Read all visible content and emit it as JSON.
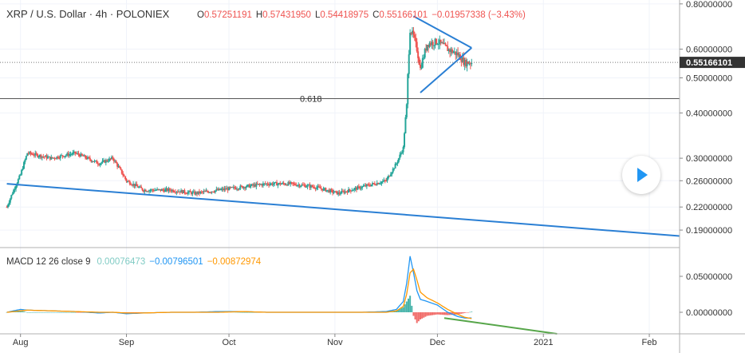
{
  "header": {
    "symbol": "XRP / U.S. Dollar",
    "interval": "4h",
    "exchange": "POLONIEX",
    "sep1": " · ",
    "sep2": " · ",
    "o_label": "O",
    "o_value": "0.57251191",
    "h_label": "H",
    "h_value": "0.57431950",
    "l_label": "L",
    "l_value": "0.54418975",
    "c_label": "C",
    "c_value": "0.55166101",
    "change": "−0.01957338 (−3.43%)"
  },
  "price_axis": {
    "ticks": [
      "0.80000000",
      "0.60000000",
      "0.50000000",
      "0.40000000",
      "0.30000000",
      "0.26000000",
      "0.22000000",
      "0.19000000"
    ],
    "tick_values": [
      0.8,
      0.6,
      0.5,
      0.4,
      0.3,
      0.26,
      0.22,
      0.19
    ],
    "current_price_label": "0.55166101",
    "current_price": 0.55166101
  },
  "fib_level": {
    "label": "0.618",
    "price": 0.438
  },
  "macd": {
    "label": "MACD 12 26 close 9",
    "histogram": "0.00076473",
    "macd_value": "−0.00796501",
    "signal_value": "−0.00872974",
    "ticks": [
      "0.05000000",
      "0.00000000"
    ],
    "tick_values": [
      0.05,
      0.0
    ]
  },
  "time_axis": {
    "labels": [
      "Aug",
      "Sep",
      "Oct",
      "Nov",
      "Dec",
      "2021",
      "Feb"
    ]
  },
  "colors": {
    "up": "#26a69a",
    "down": "#ef5350",
    "trendline": "#2a7fd4",
    "macd_line": "#2196f3",
    "signal_line": "#ff9800",
    "divergence": "#57a64a",
    "axis_text": "#333333",
    "change_text": "#ef5350",
    "histogram_text": "#80cbc4",
    "play": "#2196f3"
  },
  "chart_data": {
    "type": "candlestick",
    "scale": "log",
    "price_ylim": [
      0.17,
      0.82
    ],
    "x": [
      "2020-07-28",
      "2020-08-01",
      "2020-08-03",
      "2020-08-10",
      "2020-08-17",
      "2020-08-24",
      "2020-08-28",
      "2020-09-01",
      "2020-09-06",
      "2020-09-14",
      "2020-09-21",
      "2020-09-28",
      "2020-10-05",
      "2020-10-12",
      "2020-10-19",
      "2020-10-26",
      "2020-11-02",
      "2020-11-09",
      "2020-11-16",
      "2020-11-19",
      "2020-11-21",
      "2020-11-22",
      "2020-11-23",
      "2020-11-24",
      "2020-11-25",
      "2020-11-26",
      "2020-11-28",
      "2020-12-01",
      "2020-12-04",
      "2020-12-07",
      "2020-12-09",
      "2020-12-11"
    ],
    "close": [
      0.22,
      0.27,
      0.31,
      0.3,
      0.31,
      0.29,
      0.3,
      0.26,
      0.245,
      0.245,
      0.24,
      0.245,
      0.25,
      0.255,
      0.255,
      0.25,
      0.24,
      0.25,
      0.26,
      0.29,
      0.32,
      0.42,
      0.68,
      0.65,
      0.6,
      0.53,
      0.62,
      0.63,
      0.6,
      0.58,
      0.55,
      0.55166101
    ],
    "trendlines": [
      {
        "name": "support",
        "from": [
          "2020-07-28",
          0.255
        ],
        "to": [
          "2021-02-25",
          0.183
        ]
      },
      {
        "name": "triangle-upper",
        "from": [
          "2020-11-24",
          0.74
        ],
        "to": [
          "2020-12-11",
          0.605
        ]
      },
      {
        "name": "triangle-lower",
        "from": [
          "2020-11-26",
          0.455
        ],
        "to": [
          "2020-12-11",
          0.605
        ]
      }
    ],
    "macd_ylim": [
      -0.03,
      0.09
    ],
    "macd_line": [
      0.0,
      0.004,
      0.003,
      0.002,
      0.001,
      -0.001,
      0.0,
      -0.002,
      -0.001,
      0.0,
      0.0,
      0.001,
      0.001,
      0.0,
      0.0,
      0.0,
      0.0,
      0.0,
      0.001,
      0.004,
      0.015,
      0.04,
      0.078,
      0.055,
      0.03,
      0.018,
      0.015,
      0.01,
      0.0,
      -0.006,
      -0.008,
      -0.00796501
    ],
    "signal_line": [
      0.0,
      0.002,
      0.003,
      0.002,
      0.001,
      0.0,
      0.0,
      -0.001,
      -0.001,
      0.0,
      0.0,
      0.0,
      0.001,
      0.0,
      0.0,
      0.0,
      0.0,
      0.0,
      0.0,
      0.002,
      0.008,
      0.025,
      0.055,
      0.06,
      0.045,
      0.028,
      0.02,
      0.013,
      0.004,
      -0.003,
      -0.007,
      -0.00872974
    ],
    "divergence_line": {
      "from": [
        "2020-12-03",
        -0.008
      ],
      "to": [
        "2021-01-05",
        -0.03
      ]
    }
  }
}
